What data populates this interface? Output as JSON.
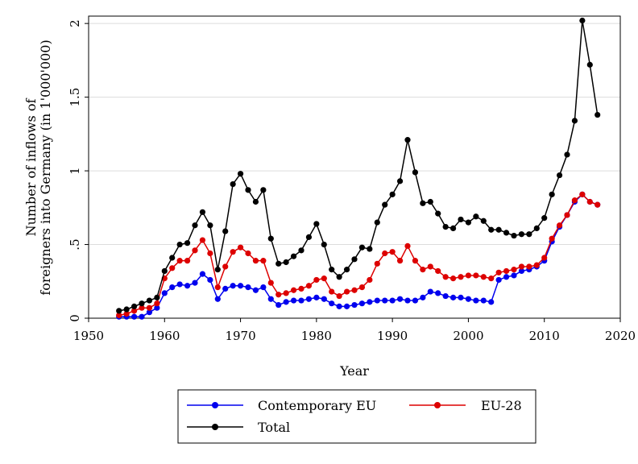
{
  "chart_data": {
    "type": "line",
    "title": "",
    "xlabel": "Year",
    "ylabel_lines": [
      "Number of inflows of",
      "foreigners into Germany (in 1'000'000)"
    ],
    "xlim": [
      1950,
      2020
    ],
    "ylim": [
      0,
      2.05
    ],
    "x_ticks": [
      1950,
      1960,
      1970,
      1980,
      1990,
      2000,
      2010,
      2020
    ],
    "x_tick_labels": [
      "1950",
      "1960",
      "1970",
      "1980",
      "1990",
      "2000",
      "2010",
      "2020"
    ],
    "y_ticks": [
      0,
      0.5,
      1,
      1.5,
      2
    ],
    "y_tick_labels": [
      "0",
      ".5",
      "1",
      "1.5",
      "2"
    ],
    "grid": "horizontal",
    "legend_position": "bottom",
    "x": [
      1954,
      1955,
      1956,
      1957,
      1958,
      1959,
      1960,
      1961,
      1962,
      1963,
      1964,
      1965,
      1966,
      1967,
      1968,
      1969,
      1970,
      1971,
      1972,
      1973,
      1974,
      1975,
      1976,
      1977,
      1978,
      1979,
      1980,
      1981,
      1982,
      1983,
      1984,
      1985,
      1986,
      1987,
      1988,
      1989,
      1990,
      1991,
      1992,
      1993,
      1994,
      1995,
      1996,
      1997,
      1998,
      1999,
      2000,
      2001,
      2002,
      2003,
      2004,
      2005,
      2006,
      2007,
      2008,
      2009,
      2010,
      2011,
      2012,
      2013,
      2014,
      2015,
      2016,
      2017
    ],
    "series": [
      {
        "name": "Contemporary EU",
        "color": "#0000ee",
        "values": [
          0.01,
          0.01,
          0.01,
          0.01,
          0.04,
          0.07,
          0.17,
          0.21,
          0.23,
          0.22,
          0.24,
          0.3,
          0.26,
          0.13,
          0.2,
          0.22,
          0.22,
          0.21,
          0.19,
          0.21,
          0.13,
          0.09,
          0.11,
          0.12,
          0.12,
          0.13,
          0.14,
          0.13,
          0.1,
          0.08,
          0.08,
          0.09,
          0.1,
          0.11,
          0.12,
          0.12,
          0.12,
          0.13,
          0.12,
          0.12,
          0.14,
          0.18,
          0.17,
          0.15,
          0.14,
          0.14,
          0.13,
          0.12,
          0.12,
          0.11,
          0.26,
          0.28,
          0.29,
          0.32,
          0.33,
          0.35,
          0.39,
          0.52,
          0.62,
          0.7,
          0.79,
          0.84,
          0.79,
          0.77
        ]
      },
      {
        "name": "EU-28",
        "color": "#dd0000",
        "values": [
          0.02,
          0.03,
          0.05,
          0.07,
          0.07,
          0.1,
          0.27,
          0.34,
          0.39,
          0.39,
          0.46,
          0.53,
          0.44,
          0.21,
          0.35,
          0.45,
          0.48,
          0.44,
          0.39,
          0.39,
          0.24,
          0.16,
          0.17,
          0.19,
          0.2,
          0.22,
          0.26,
          0.27,
          0.18,
          0.15,
          0.18,
          0.19,
          0.21,
          0.26,
          0.37,
          0.44,
          0.45,
          0.39,
          0.49,
          0.39,
          0.33,
          0.35,
          0.32,
          0.28,
          0.27,
          0.28,
          0.29,
          0.29,
          0.28,
          0.27,
          0.31,
          0.32,
          0.33,
          0.35,
          0.35,
          0.36,
          0.41,
          0.54,
          0.63,
          0.7,
          0.8,
          0.84,
          0.79,
          0.77
        ]
      },
      {
        "name": "Total",
        "color": "#000000",
        "values": [
          0.05,
          0.06,
          0.08,
          0.1,
          0.12,
          0.14,
          0.32,
          0.41,
          0.5,
          0.51,
          0.63,
          0.72,
          0.63,
          0.33,
          0.59,
          0.91,
          0.98,
          0.87,
          0.79,
          0.87,
          0.54,
          0.37,
          0.38,
          0.42,
          0.46,
          0.55,
          0.64,
          0.5,
          0.33,
          0.28,
          0.33,
          0.4,
          0.48,
          0.47,
          0.65,
          0.77,
          0.84,
          0.93,
          1.21,
          0.99,
          0.78,
          0.79,
          0.71,
          0.62,
          0.61,
          0.67,
          0.65,
          0.69,
          0.66,
          0.6,
          0.6,
          0.58,
          0.56,
          0.57,
          0.57,
          0.61,
          0.68,
          0.84,
          0.97,
          1.11,
          1.34,
          2.02,
          1.72,
          1.38
        ]
      }
    ]
  }
}
